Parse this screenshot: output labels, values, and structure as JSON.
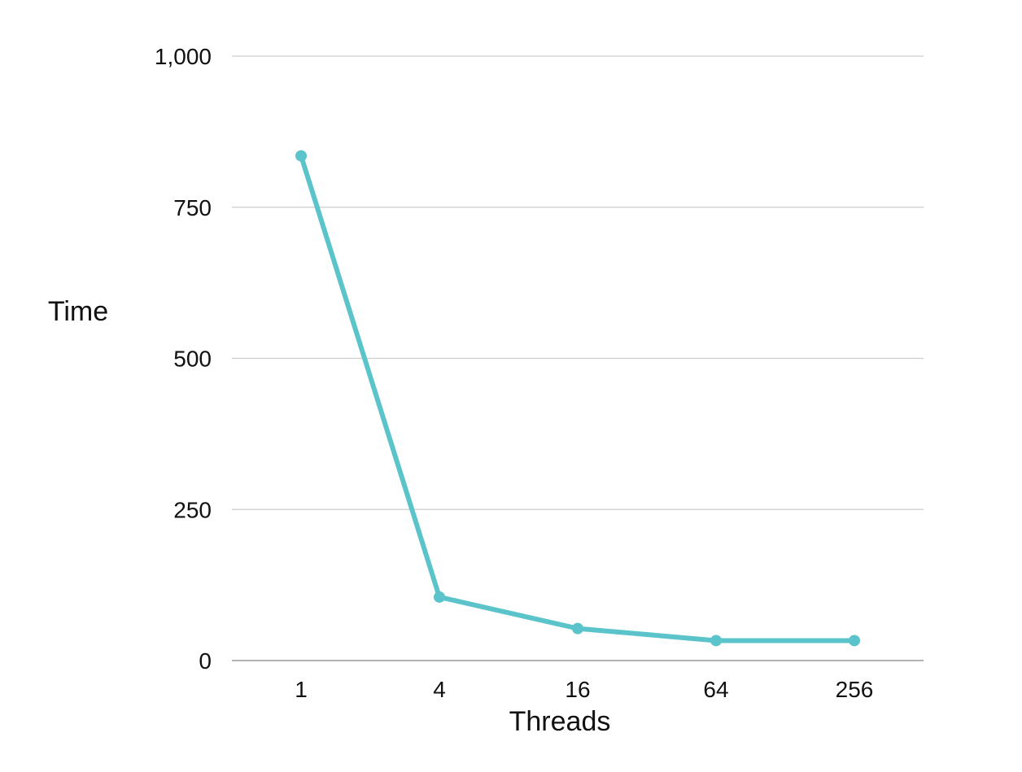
{
  "chart_data": {
    "type": "line",
    "title": "",
    "xlabel": "Threads",
    "ylabel": "Time",
    "categories": [
      "1",
      "4",
      "16",
      "64",
      "256"
    ],
    "series": [
      {
        "values": [
          835,
          105,
          53,
          33,
          33
        ]
      }
    ],
    "ylim": [
      0,
      1000
    ],
    "yticks": [
      0,
      250,
      500,
      750,
      1000
    ],
    "ytick_labels": [
      "0",
      "250",
      "500",
      "750",
      "1,000"
    ],
    "grid": "horizontal",
    "legend": "none",
    "colors": {
      "series_line": "#5bc4cb",
      "gridline": "#cccccc",
      "baseline": "#999999"
    }
  }
}
